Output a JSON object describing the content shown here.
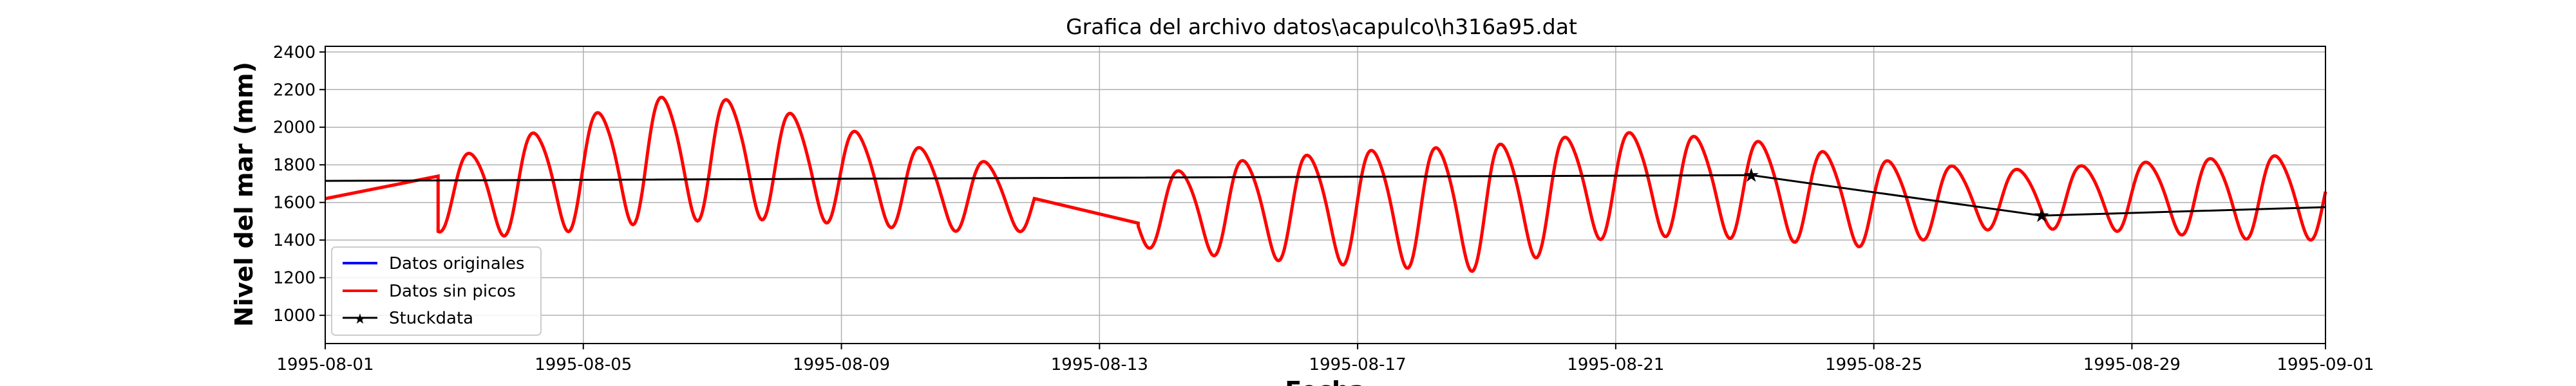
{
  "chart_data": {
    "type": "line",
    "title": "Grafica del archivo datos\\acapulco\\h316a95.dat",
    "xlabel": "Fecha",
    "ylabel": "Nivel del mar (mm)",
    "xlim": [
      "1995-08-01",
      "1995-09-01"
    ],
    "ylim": [
      850,
      2430
    ],
    "grid": true,
    "legend_position": "lower-left",
    "x_ticks": [
      "1995-08-01",
      "1995-08-05",
      "1995-08-09",
      "1995-08-13",
      "1995-08-17",
      "1995-08-21",
      "1995-08-25",
      "1995-08-29",
      "1995-09-01"
    ],
    "y_ticks": [
      1000,
      1200,
      1400,
      1600,
      1800,
      2000,
      2200,
      2400
    ],
    "series": [
      {
        "name": "Datos originales",
        "color": "#0000ff",
        "style": "line",
        "note_hidden_under": "Datos sin picos"
      },
      {
        "name": "Datos sin picos",
        "color": "#ff0000",
        "style": "line",
        "gap_from": "1995-08-12.0",
        "gap_to": "1995-08-13.6",
        "segments": [
          {
            "from": "1995-08-01.0",
            "to": "1995-08-02.75",
            "kind": "linear",
            "y0": 1620,
            "y1": 1740
          },
          {
            "from": "1995-08-02.75",
            "to": "1995-08-12.0",
            "kind": "tide",
            "period_days": 1.0,
            "amplitude": [
              [
                2.75,
                180
              ],
              [
                4.0,
                260
              ],
              [
                6.0,
                330
              ],
              [
                7.5,
                310
              ],
              [
                9.0,
                250
              ],
              [
                10.0,
                220
              ],
              [
                11.0,
                190
              ],
              [
                12.0,
                160
              ]
            ],
            "mean": [
              [
                2.75,
                1640
              ],
              [
                4.0,
                1700
              ],
              [
                6.0,
                1850
              ],
              [
                7.5,
                1850
              ],
              [
                9.0,
                1760
              ],
              [
                10.0,
                1700
              ],
              [
                11.0,
                1650
              ],
              [
                12.0,
                1620
              ]
            ]
          },
          {
            "from": "1995-08-12.0",
            "to": "1995-08-13.6",
            "kind": "linear",
            "y0": 1620,
            "y1": 1490
          },
          {
            "from": "1995-08-13.6",
            "to": "1995-09-01.0",
            "kind": "tide",
            "period_days": 1.0,
            "amplitude": [
              [
                13.6,
                180
              ],
              [
                15.0,
                250
              ],
              [
                17.0,
                300
              ],
              [
                19.0,
                330
              ],
              [
                21.0,
                270
              ],
              [
                23.0,
                260
              ],
              [
                25.0,
                230
              ],
              [
                27.0,
                150
              ],
              [
                29.0,
                180
              ],
              [
                31.0,
                220
              ]
            ],
            "mean": [
              [
                13.6,
                1560
              ],
              [
                15.0,
                1580
              ],
              [
                17.0,
                1590
              ],
              [
                19.0,
                1590
              ],
              [
                21.0,
                1720
              ],
              [
                23.0,
                1690
              ],
              [
                25.0,
                1610
              ],
              [
                27.0,
                1630
              ],
              [
                29.0,
                1640
              ],
              [
                31.0,
                1640
              ]
            ]
          }
        ]
      },
      {
        "name": "Stuckdata",
        "color": "#000000",
        "style": "line-with-star-markers",
        "x": [
          "1995-08-01",
          "1995-08-23.1",
          "1995-08-27.6",
          "1995-09-01"
        ],
        "values": [
          1715,
          1745,
          1530,
          1575
        ],
        "markers_at": [
          1,
          2
        ]
      }
    ],
    "legend": [
      "Datos originales",
      "Datos sin picos",
      "Stuckdata"
    ]
  }
}
